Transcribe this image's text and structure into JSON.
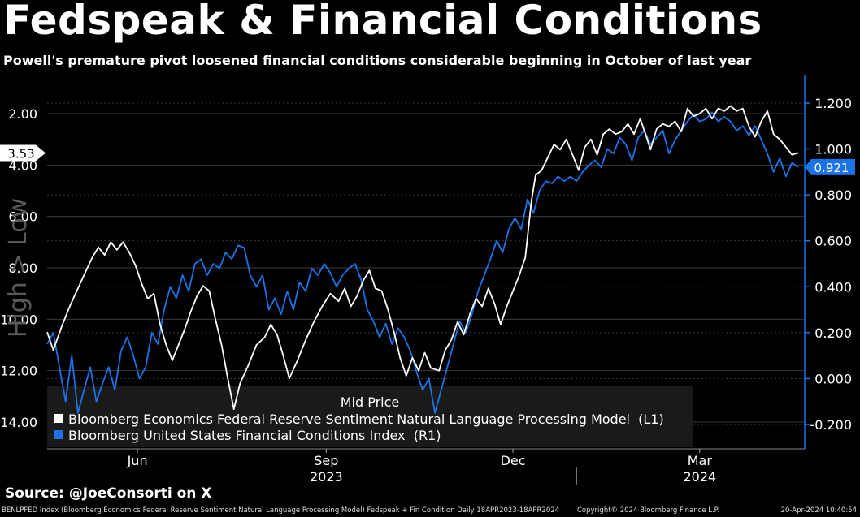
{
  "header": {
    "title": "Fedspeak & Financial Conditions",
    "subtitle": "Powell's premature pivot loosened financial conditions considerable beginning in October of last year"
  },
  "source": "Source: @JoeConsorti on X",
  "footer": {
    "left": "BENLPFED Index (Bloomberg Economics Federal Reserve Sentiment Natural Language Processing Model) Fedspeak + Fin Condition  Daily 18APR2023-18APR2024",
    "center": "Copyright© 2024 Bloomberg Finance L.P.",
    "right": "20-Apr-2024 10:40:54"
  },
  "colors": {
    "background": "#000000",
    "sentiment": "#ffffff",
    "fci": "#1a73e8",
    "grid": "#3a3a3a"
  },
  "chart_data": {
    "type": "line",
    "title": "Fedspeak & Financial Conditions",
    "x_range": [
      "2023-04-18",
      "2024-04-18"
    ],
    "x_ticks": [
      {
        "label": "Jun",
        "date": "2023-06-01"
      },
      {
        "label": "Sep",
        "date": "2023-09-01"
      },
      {
        "label": "Dec",
        "date": "2023-12-01"
      },
      {
        "label": "Mar",
        "date": "2024-03-01"
      }
    ],
    "year_labels": [
      {
        "label": "2023",
        "date": "2023-09-01"
      },
      {
        "label": "2024",
        "date": "2024-03-01"
      }
    ],
    "left_axis": {
      "label": "High > Low",
      "inverted": true,
      "range": [
        1.0,
        15.0
      ],
      "ticks": [
        "2.00",
        "4.00",
        "6.00",
        "8.00",
        "10.00",
        "12.00",
        "14.00"
      ],
      "last_value": "3.53"
    },
    "right_axis": {
      "range": [
        -0.3,
        1.3
      ],
      "ticks": [
        "1.200",
        "1.000",
        "0.800",
        "0.600",
        "0.400",
        "0.200",
        "0.000",
        "-0.200"
      ],
      "last_value": "0.921"
    },
    "legend": {
      "title": "Mid Price",
      "position": "bottom-left",
      "entries": [
        {
          "label": "Bloomberg Economics Federal Reserve Sentiment Natural Language Processing Model  (L1)",
          "color": "#ffffff"
        },
        {
          "label": "Bloomberg United States Financial Conditions Index  (R1)",
          "color": "#1a73e8"
        }
      ]
    },
    "series": [
      {
        "name": "Bloomberg Economics Federal Reserve Sentiment Natural Language Processing Model  (L1)",
        "axis": "left",
        "color": "#ffffff",
        "points": [
          [
            "2023-04-18",
            10.5
          ],
          [
            "2023-04-21",
            11.2
          ],
          [
            "2023-04-25",
            10.3
          ],
          [
            "2023-04-29",
            9.5
          ],
          [
            "2023-05-03",
            8.8
          ],
          [
            "2023-05-07",
            8.1
          ],
          [
            "2023-05-10",
            7.6
          ],
          [
            "2023-05-13",
            7.2
          ],
          [
            "2023-05-16",
            7.5
          ],
          [
            "2023-05-19",
            7.0
          ],
          [
            "2023-05-22",
            7.3
          ],
          [
            "2023-05-25",
            7.0
          ],
          [
            "2023-05-28",
            7.4
          ],
          [
            "2023-05-31",
            7.9
          ],
          [
            "2023-06-03",
            8.6
          ],
          [
            "2023-06-06",
            9.2
          ],
          [
            "2023-06-09",
            9.0
          ],
          [
            "2023-06-12",
            10.2
          ],
          [
            "2023-06-15",
            11.0
          ],
          [
            "2023-06-18",
            11.6
          ],
          [
            "2023-06-21",
            11.0
          ],
          [
            "2023-06-24",
            10.4
          ],
          [
            "2023-06-27",
            9.7
          ],
          [
            "2023-06-30",
            9.1
          ],
          [
            "2023-07-03",
            8.7
          ],
          [
            "2023-07-06",
            8.9
          ],
          [
            "2023-07-09",
            10.0
          ],
          [
            "2023-07-12",
            11.0
          ],
          [
            "2023-07-15",
            12.3
          ],
          [
            "2023-07-18",
            13.5
          ],
          [
            "2023-07-21",
            12.5
          ],
          [
            "2023-07-25",
            11.8
          ],
          [
            "2023-07-29",
            11.0
          ],
          [
            "2023-08-02",
            10.7
          ],
          [
            "2023-08-05",
            10.2
          ],
          [
            "2023-08-08",
            10.6
          ],
          [
            "2023-08-11",
            11.4
          ],
          [
            "2023-08-14",
            12.3
          ],
          [
            "2023-08-18",
            11.6
          ],
          [
            "2023-08-22",
            10.8
          ],
          [
            "2023-08-26",
            10.1
          ],
          [
            "2023-08-30",
            9.5
          ],
          [
            "2023-09-03",
            9.0
          ],
          [
            "2023-09-07",
            9.3
          ],
          [
            "2023-09-10",
            8.8
          ],
          [
            "2023-09-13",
            9.5
          ],
          [
            "2023-09-16",
            9.1
          ],
          [
            "2023-09-19",
            8.5
          ],
          [
            "2023-09-22",
            8.1
          ],
          [
            "2023-09-25",
            8.8
          ],
          [
            "2023-09-28",
            8.9
          ],
          [
            "2023-10-01",
            9.6
          ],
          [
            "2023-10-04",
            10.5
          ],
          [
            "2023-10-07",
            11.5
          ],
          [
            "2023-10-10",
            12.2
          ],
          [
            "2023-10-13",
            11.5
          ],
          [
            "2023-10-16",
            12.0
          ],
          [
            "2023-10-19",
            11.3
          ],
          [
            "2023-10-22",
            11.9
          ],
          [
            "2023-10-26",
            12.0
          ],
          [
            "2023-10-29",
            11.2
          ],
          [
            "2023-11-01",
            10.8
          ],
          [
            "2023-11-04",
            10.1
          ],
          [
            "2023-11-07",
            10.6
          ],
          [
            "2023-11-10",
            9.8
          ],
          [
            "2023-11-13",
            9.2
          ],
          [
            "2023-11-16",
            9.5
          ],
          [
            "2023-11-19",
            8.8
          ],
          [
            "2023-11-22",
            9.4
          ],
          [
            "2023-11-25",
            10.2
          ],
          [
            "2023-11-28",
            9.5
          ],
          [
            "2023-12-01",
            8.9
          ],
          [
            "2023-12-04",
            8.3
          ],
          [
            "2023-12-07",
            7.6
          ],
          [
            "2023-12-10",
            5.4
          ],
          [
            "2023-12-12",
            4.4
          ],
          [
            "2023-12-15",
            4.2
          ],
          [
            "2023-12-18",
            3.7
          ],
          [
            "2023-12-21",
            3.2
          ],
          [
            "2023-12-24",
            3.4
          ],
          [
            "2023-12-27",
            3.0
          ],
          [
            "2023-12-30",
            3.6
          ],
          [
            "2024-01-02",
            4.2
          ],
          [
            "2024-01-05",
            3.3
          ],
          [
            "2024-01-08",
            3.0
          ],
          [
            "2024-01-11",
            3.6
          ],
          [
            "2024-01-14",
            2.8
          ],
          [
            "2024-01-17",
            2.6
          ],
          [
            "2024-01-20",
            2.8
          ],
          [
            "2024-01-23",
            2.7
          ],
          [
            "2024-01-26",
            2.4
          ],
          [
            "2024-01-29",
            2.8
          ],
          [
            "2024-02-01",
            2.2
          ],
          [
            "2024-02-04",
            2.9
          ],
          [
            "2024-02-06",
            3.4
          ],
          [
            "2024-02-09",
            2.6
          ],
          [
            "2024-02-12",
            2.4
          ],
          [
            "2024-02-15",
            2.5
          ],
          [
            "2024-02-18",
            2.3
          ],
          [
            "2024-02-21",
            2.7
          ],
          [
            "2024-02-24",
            1.8
          ],
          [
            "2024-02-27",
            2.1
          ],
          [
            "2024-03-01",
            2.0
          ],
          [
            "2024-03-04",
            1.8
          ],
          [
            "2024-03-07",
            2.2
          ],
          [
            "2024-03-10",
            1.8
          ],
          [
            "2024-03-13",
            1.9
          ],
          [
            "2024-03-16",
            1.7
          ],
          [
            "2024-03-19",
            1.9
          ],
          [
            "2024-03-22",
            1.8
          ],
          [
            "2024-03-25",
            2.5
          ],
          [
            "2024-03-28",
            2.9
          ],
          [
            "2024-03-31",
            2.3
          ],
          [
            "2024-04-03",
            1.9
          ],
          [
            "2024-04-06",
            2.8
          ],
          [
            "2024-04-09",
            3.0
          ],
          [
            "2024-04-12",
            3.3
          ],
          [
            "2024-04-15",
            3.6
          ],
          [
            "2024-04-18",
            3.53
          ]
        ]
      },
      {
        "name": "Bloomberg United States Financial Conditions Index  (R1)",
        "axis": "right",
        "color": "#1a73e8",
        "points": [
          [
            "2023-04-18",
            0.15
          ],
          [
            "2023-04-21",
            0.2
          ],
          [
            "2023-04-24",
            0.05
          ],
          [
            "2023-04-27",
            -0.1
          ],
          [
            "2023-04-30",
            0.1
          ],
          [
            "2023-05-03",
            -0.15
          ],
          [
            "2023-05-06",
            -0.05
          ],
          [
            "2023-05-09",
            0.05
          ],
          [
            "2023-05-12",
            -0.1
          ],
          [
            "2023-05-15",
            -0.02
          ],
          [
            "2023-05-18",
            0.05
          ],
          [
            "2023-05-21",
            -0.05
          ],
          [
            "2023-05-24",
            0.12
          ],
          [
            "2023-05-27",
            0.18
          ],
          [
            "2023-05-30",
            0.1
          ],
          [
            "2023-06-02",
            0.0
          ],
          [
            "2023-06-05",
            0.05
          ],
          [
            "2023-06-08",
            0.2
          ],
          [
            "2023-06-11",
            0.15
          ],
          [
            "2023-06-14",
            0.3
          ],
          [
            "2023-06-17",
            0.4
          ],
          [
            "2023-06-20",
            0.35
          ],
          [
            "2023-06-23",
            0.45
          ],
          [
            "2023-06-26",
            0.38
          ],
          [
            "2023-06-29",
            0.5
          ],
          [
            "2023-07-02",
            0.52
          ],
          [
            "2023-07-05",
            0.45
          ],
          [
            "2023-07-08",
            0.5
          ],
          [
            "2023-07-11",
            0.48
          ],
          [
            "2023-07-14",
            0.55
          ],
          [
            "2023-07-17",
            0.52
          ],
          [
            "2023-07-20",
            0.58
          ],
          [
            "2023-07-23",
            0.57
          ],
          [
            "2023-07-26",
            0.45
          ],
          [
            "2023-07-29",
            0.4
          ],
          [
            "2023-08-01",
            0.45
          ],
          [
            "2023-08-04",
            0.3
          ],
          [
            "2023-08-07",
            0.35
          ],
          [
            "2023-08-10",
            0.28
          ],
          [
            "2023-08-13",
            0.38
          ],
          [
            "2023-08-16",
            0.3
          ],
          [
            "2023-08-19",
            0.42
          ],
          [
            "2023-08-22",
            0.38
          ],
          [
            "2023-08-25",
            0.48
          ],
          [
            "2023-08-28",
            0.45
          ],
          [
            "2023-08-31",
            0.5
          ],
          [
            "2023-09-03",
            0.46
          ],
          [
            "2023-09-06",
            0.4
          ],
          [
            "2023-09-09",
            0.45
          ],
          [
            "2023-09-12",
            0.48
          ],
          [
            "2023-09-15",
            0.5
          ],
          [
            "2023-09-18",
            0.43
          ],
          [
            "2023-09-21",
            0.3
          ],
          [
            "2023-09-24",
            0.25
          ],
          [
            "2023-09-27",
            0.18
          ],
          [
            "2023-09-30",
            0.24
          ],
          [
            "2023-10-03",
            0.15
          ],
          [
            "2023-10-06",
            0.22
          ],
          [
            "2023-10-09",
            0.18
          ],
          [
            "2023-10-12",
            0.12
          ],
          [
            "2023-10-15",
            0.03
          ],
          [
            "2023-10-18",
            -0.05
          ],
          [
            "2023-10-21",
            0.0
          ],
          [
            "2023-10-24",
            -0.15
          ],
          [
            "2023-10-27",
            -0.05
          ],
          [
            "2023-10-30",
            0.05
          ],
          [
            "2023-11-02",
            0.15
          ],
          [
            "2023-11-05",
            0.25
          ],
          [
            "2023-11-08",
            0.2
          ],
          [
            "2023-11-11",
            0.28
          ],
          [
            "2023-11-14",
            0.38
          ],
          [
            "2023-11-17",
            0.45
          ],
          [
            "2023-11-20",
            0.52
          ],
          [
            "2023-11-23",
            0.6
          ],
          [
            "2023-11-26",
            0.55
          ],
          [
            "2023-11-29",
            0.65
          ],
          [
            "2023-12-02",
            0.7
          ],
          [
            "2023-12-05",
            0.65
          ],
          [
            "2023-12-08",
            0.78
          ],
          [
            "2023-12-11",
            0.72
          ],
          [
            "2023-12-14",
            0.82
          ],
          [
            "2023-12-17",
            0.86
          ],
          [
            "2023-12-20",
            0.85
          ],
          [
            "2023-12-23",
            0.88
          ],
          [
            "2023-12-26",
            0.86
          ],
          [
            "2023-12-29",
            0.88
          ],
          [
            "2024-01-01",
            0.86
          ],
          [
            "2024-01-04",
            0.9
          ],
          [
            "2024-01-07",
            0.93
          ],
          [
            "2024-01-10",
            0.95
          ],
          [
            "2024-01-13",
            0.92
          ],
          [
            "2024-01-16",
            1.0
          ],
          [
            "2024-01-19",
            0.98
          ],
          [
            "2024-01-22",
            1.05
          ],
          [
            "2024-01-25",
            1.02
          ],
          [
            "2024-01-28",
            0.95
          ],
          [
            "2024-01-31",
            1.05
          ],
          [
            "2024-02-03",
            1.08
          ],
          [
            "2024-02-06",
            1.02
          ],
          [
            "2024-02-09",
            1.05
          ],
          [
            "2024-02-12",
            1.08
          ],
          [
            "2024-02-15",
            0.98
          ],
          [
            "2024-02-18",
            1.04
          ],
          [
            "2024-02-21",
            1.08
          ],
          [
            "2024-02-24",
            1.12
          ],
          [
            "2024-02-27",
            1.15
          ],
          [
            "2024-03-01",
            1.12
          ],
          [
            "2024-03-04",
            1.13
          ],
          [
            "2024-03-07",
            1.16
          ],
          [
            "2024-03-10",
            1.12
          ],
          [
            "2024-03-13",
            1.14
          ],
          [
            "2024-03-16",
            1.12
          ],
          [
            "2024-03-19",
            1.08
          ],
          [
            "2024-03-22",
            1.1
          ],
          [
            "2024-03-25",
            1.06
          ],
          [
            "2024-03-28",
            1.1
          ],
          [
            "2024-03-31",
            1.04
          ],
          [
            "2024-04-03",
            0.98
          ],
          [
            "2024-04-06",
            0.9
          ],
          [
            "2024-04-09",
            0.96
          ],
          [
            "2024-04-12",
            0.88
          ],
          [
            "2024-04-15",
            0.94
          ],
          [
            "2024-04-18",
            0.921
          ]
        ]
      }
    ]
  }
}
